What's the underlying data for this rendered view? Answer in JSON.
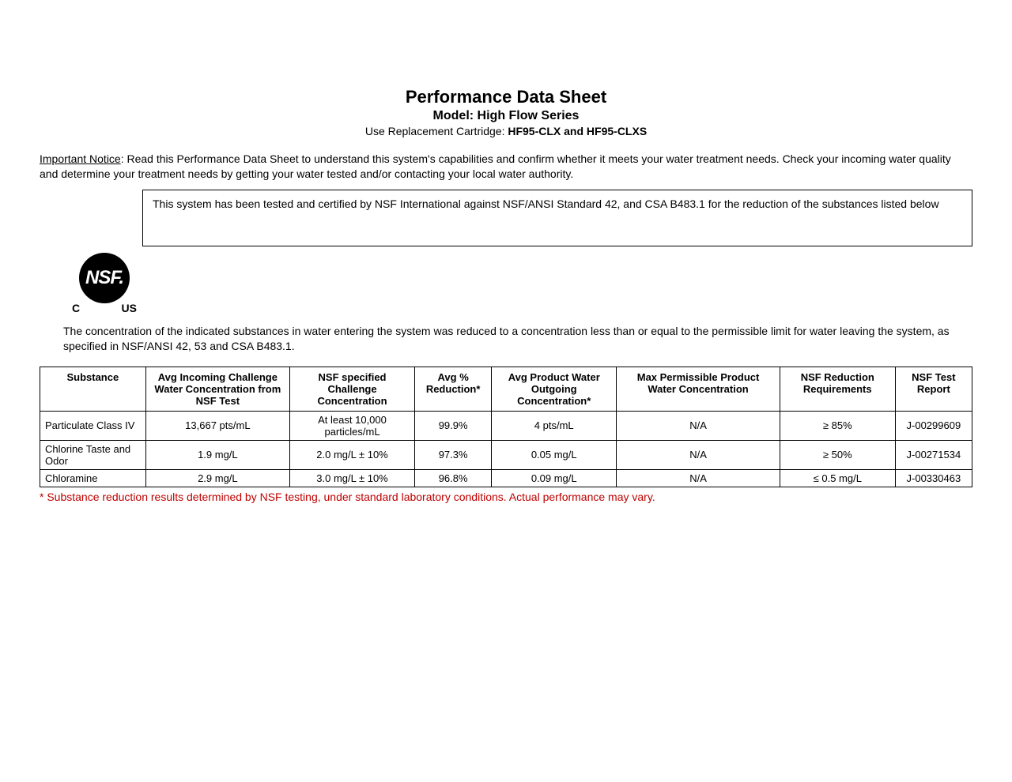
{
  "header": {
    "title": "Performance Data Sheet",
    "model": "Model: High Flow Series",
    "cartridge_prefix": "Use Replacement Cartridge: ",
    "cartridge_models": "HF95-CLX and HF95-CLXS"
  },
  "notice": {
    "label": "Important Notice",
    "text": ": Read this Performance Data Sheet to understand this system's capabilities and confirm whether it meets your water treatment needs. Check your incoming water quality and determine your treatment needs by getting your water tested and/or contacting your local water authority."
  },
  "certification_box": "This system has been tested and certified by NSF International against NSF/ANSI Standard 42, and CSA B483.1 for the reduction of the substances listed below",
  "nsf_logo": {
    "text": "NSF.",
    "left_sub": "C",
    "right_sub": "US"
  },
  "concentration_text": "The concentration of the indicated substances in water entering the system was reduced to a concentration less than or equal to the permissible limit for water leaving the system, as specified in NSF/ANSI 42, 53 and CSA B483.1.",
  "table": {
    "columns": [
      "Substance",
      "Avg Incoming Challenge Water Concentration from NSF Test",
      "NSF specified Challenge Concentration",
      "Avg % Reduction*",
      "Avg Product Water Outgoing Concentration*",
      "Max Permissible Product Water Concentration",
      "NSF Reduction Requirements",
      "NSF Test Report"
    ],
    "rows": [
      {
        "substance": "Particulate Class IV",
        "incoming": "13,667 pts/mL",
        "nsfspec": "At least 10,000 particles/mL",
        "reduction": "99.9%",
        "outgoing": "4 pts/mL",
        "maxperm": "N/A",
        "nsfred": "≥ 85%",
        "report": "J-00299609"
      },
      {
        "substance": "Chlorine Taste and Odor",
        "incoming": "1.9 mg/L",
        "nsfspec": "2.0 mg/L ± 10%",
        "reduction": "97.3%",
        "outgoing": "0.05 mg/L",
        "maxperm": "N/A",
        "nsfred": "≥ 50%",
        "report": "J-00271534"
      },
      {
        "substance": "Chloramine",
        "incoming": "2.9 mg/L",
        "nsfspec": "3.0 mg/L ± 10%",
        "reduction": "96.8%",
        "outgoing": "0.09 mg/L",
        "maxperm": "N/A",
        "nsfred": "≤ 0.5 mg/L",
        "report": "J-00330463"
      }
    ]
  },
  "footnote": "* Substance reduction results determined by NSF testing, under standard laboratory conditions. Actual performance may vary.",
  "colors": {
    "text": "#000000",
    "background": "#ffffff",
    "border": "#000000",
    "footnote": "#c00000"
  }
}
